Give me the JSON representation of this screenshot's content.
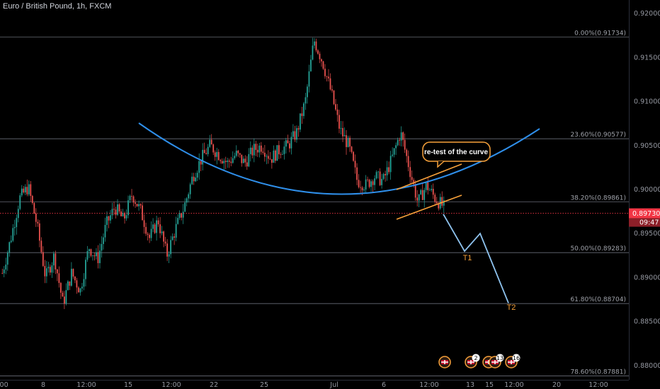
{
  "title": "Euro / British Pound, 1h, FXCM",
  "chart_data": {
    "type": "candlestick",
    "symbol": "Euro / British Pound",
    "interval": "1h",
    "source": "FXCM",
    "y_ticks": [
      "0.92000",
      "0.91500",
      "0.91000",
      "0.90500",
      "0.90000",
      "0.89500",
      "0.89000",
      "0.88500",
      "0.88000"
    ],
    "x_ticks": [
      ":00",
      "8",
      "12:00",
      "15",
      "12:00",
      "22",
      "25",
      "Jul",
      "6",
      "12:00",
      "13",
      "15",
      "12:00",
      "20",
      "12:00"
    ],
    "ylim": [
      0.8795,
      0.9209
    ],
    "current_price": "0.89730",
    "countdown": "09:47",
    "fib_levels": [
      {
        "label": "0.00%(0.91734)",
        "value": 0.91734
      },
      {
        "label": "23.60%(0.90577)",
        "value": 0.90577
      },
      {
        "label": "38.20%(0.89861)",
        "value": 0.89861
      },
      {
        "label": "50.00%(0.89283)",
        "value": 0.89283
      },
      {
        "label": "61.80%(0.88704)",
        "value": 0.88704
      },
      {
        "label": "78.60%(0.87881)",
        "value": 0.87881
      }
    ],
    "callout": "re-test of the curve",
    "targets": [
      {
        "label": "T1",
        "value": 0.893
      },
      {
        "label": "T2",
        "value": 0.8871
      }
    ],
    "projection": [
      0.8972,
      0.893,
      0.895,
      0.8871
    ],
    "price_path": [
      0.8905,
      0.8945,
      0.899,
      0.9003,
      0.896,
      0.89,
      0.8925,
      0.887,
      0.8905,
      0.8885,
      0.8935,
      0.892,
      0.896,
      0.898,
      0.8965,
      0.8995,
      0.8975,
      0.8945,
      0.8965,
      0.8925,
      0.8955,
      0.898,
      0.9015,
      0.9035,
      0.905,
      0.904,
      0.903,
      0.904,
      0.903,
      0.9045,
      0.905,
      0.9035,
      0.9045,
      0.905,
      0.9065,
      0.91,
      0.917,
      0.9145,
      0.911,
      0.9068,
      0.905,
      0.901,
      0.9005,
      0.9015,
      0.901,
      0.9035,
      0.9065,
      0.9025,
      0.8985,
      0.9005,
      0.899,
      0.898
    ],
    "colors": {
      "up": "#26a69a",
      "down": "#ef5350",
      "curve": "#2f8fea",
      "orange": "#f7a13a",
      "projection": "#8fc4f0",
      "price_line": "#f23645"
    }
  },
  "events": [
    {
      "badge": ""
    },
    {
      "badge": "2"
    },
    {
      "badge": ""
    },
    {
      "badge": "13"
    },
    {
      "badge": "16"
    }
  ]
}
